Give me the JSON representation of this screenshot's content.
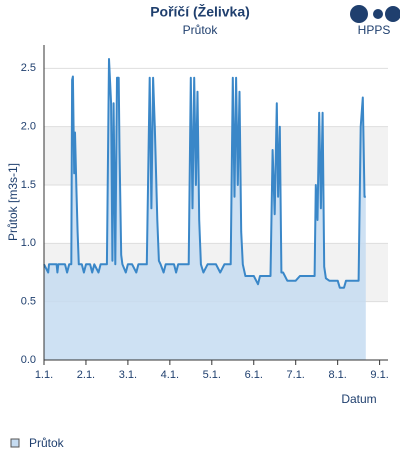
{
  "chart_data": {
    "type": "area",
    "title": "Poříčí (Želivka)",
    "subtitle": "Průtok",
    "logo": "HPPS",
    "ylabel": "Průtok [m3s-1]",
    "xlabel": "Datum",
    "xlim": [
      1,
      9.2
    ],
    "xticks": [
      {
        "value": 1,
        "label": "1.1."
      },
      {
        "value": 2,
        "label": "2.1."
      },
      {
        "value": 3,
        "label": "3.1."
      },
      {
        "value": 4,
        "label": "4.1."
      },
      {
        "value": 5,
        "label": "5.1."
      },
      {
        "value": 6,
        "label": "6.1."
      },
      {
        "value": 7,
        "label": "7.1."
      },
      {
        "value": 8,
        "label": "8.1."
      },
      {
        "value": 9,
        "label": "9.1."
      }
    ],
    "ylim": [
      0,
      2.7
    ],
    "yticks": [
      {
        "value": 0,
        "label": "0.0"
      },
      {
        "value": 0.5,
        "label": "0.5"
      },
      {
        "value": 1,
        "label": "1.0"
      },
      {
        "value": 1.5,
        "label": "1.5"
      },
      {
        "value": 2,
        "label": "2.0"
      },
      {
        "value": 2.5,
        "label": "2.5"
      }
    ],
    "grid": true,
    "x": [
      1.0,
      1.1,
      1.12,
      1.3,
      1.32,
      1.34,
      1.5,
      1.55,
      1.6,
      1.65,
      1.67,
      1.69,
      1.72,
      1.74,
      1.77,
      1.8,
      1.83,
      1.9,
      1.95,
      2.0,
      2.1,
      2.15,
      2.2,
      2.3,
      2.35,
      2.5,
      2.55,
      2.6,
      2.63,
      2.66,
      2.7,
      2.74,
      2.78,
      2.8,
      2.84,
      2.87,
      2.95,
      3.0,
      3.1,
      3.2,
      3.25,
      3.45,
      3.52,
      3.56,
      3.6,
      3.64,
      3.7,
      3.74,
      3.78,
      3.85,
      3.9,
      4.1,
      4.15,
      4.2,
      4.45,
      4.5,
      4.54,
      4.58,
      4.62,
      4.66,
      4.7,
      4.74,
      4.8,
      4.9,
      5.1,
      5.2,
      5.3,
      5.45,
      5.5,
      5.54,
      5.58,
      5.62,
      5.66,
      5.7,
      5.74,
      5.8,
      6.0,
      6.1,
      6.15,
      6.4,
      6.45,
      6.5,
      6.55,
      6.58,
      6.62,
      6.66,
      6.7,
      6.8,
      7.0,
      7.1,
      7.3,
      7.45,
      7.48,
      7.52,
      7.56,
      7.6,
      7.64,
      7.68,
      7.72,
      7.8,
      8.0,
      8.05,
      8.15,
      8.2,
      8.5,
      8.55,
      8.6,
      8.64,
      8.67
    ],
    "series": [
      {
        "name": "Průtok",
        "color": "#3a87c8",
        "fill": "#c6dcf1",
        "values": [
          0.82,
          0.75,
          0.82,
          0.82,
          0.75,
          0.82,
          0.82,
          0.75,
          0.82,
          0.82,
          2.4,
          2.43,
          1.6,
          1.95,
          1.5,
          1.1,
          0.82,
          0.82,
          0.75,
          0.82,
          0.82,
          0.75,
          0.82,
          0.75,
          0.82,
          0.82,
          2.58,
          2.2,
          0.85,
          2.2,
          0.82,
          2.42,
          2.42,
          1.8,
          0.9,
          0.82,
          0.75,
          0.82,
          0.82,
          0.75,
          0.82,
          0.82,
          2.42,
          1.3,
          2.42,
          2.0,
          1.2,
          0.85,
          0.82,
          0.75,
          0.82,
          0.82,
          0.75,
          0.82,
          0.82,
          2.42,
          1.3,
          2.42,
          1.5,
          2.3,
          1.2,
          0.82,
          0.75,
          0.82,
          0.82,
          0.75,
          0.82,
          0.82,
          2.42,
          1.4,
          2.42,
          1.5,
          2.3,
          1.1,
          0.82,
          0.72,
          0.72,
          0.65,
          0.72,
          0.72,
          1.8,
          1.25,
          2.2,
          1.4,
          2.0,
          0.75,
          0.75,
          0.68,
          0.68,
          0.72,
          0.72,
          0.72,
          1.5,
          1.2,
          2.12,
          1.3,
          2.12,
          0.8,
          0.7,
          0.68,
          0.68,
          0.62,
          0.62,
          0.68,
          0.68,
          2.0,
          2.25,
          1.4,
          1.4
        ]
      }
    ]
  }
}
